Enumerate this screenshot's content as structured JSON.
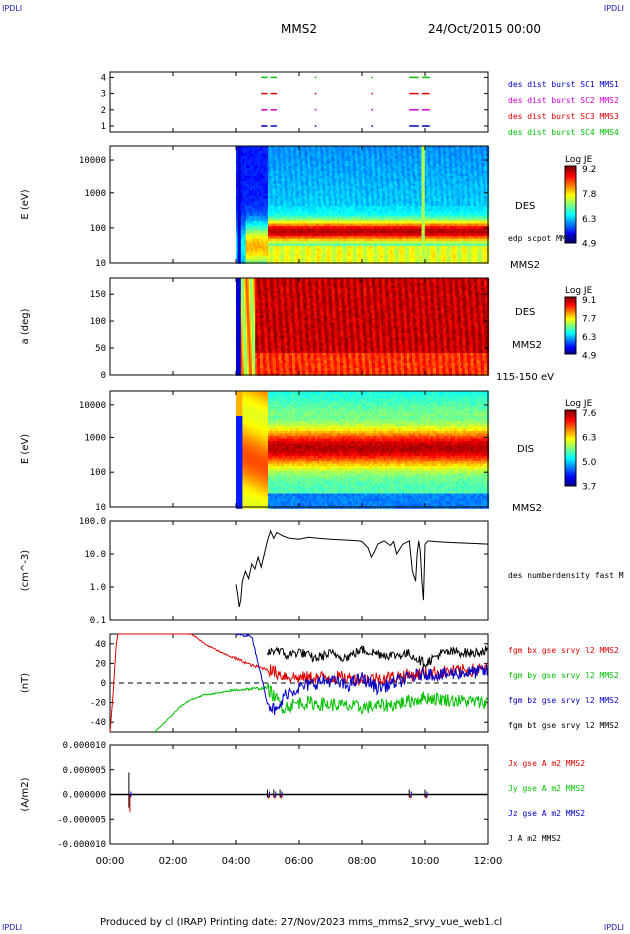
{
  "corner_tl": "IPDLI",
  "corner_tr": "IPDLI",
  "corner_bl": "IPDLI",
  "corner_br": "IPDLI",
  "header": {
    "spacecraft": "MMS2",
    "date": "24/Oct/2015 00:00"
  },
  "footer": {
    "text": "Produced by cl (IRAP)   Printing date: 27/Nov/2023   mms_mms2_srvy_vue_web1.cl"
  },
  "colors": {
    "c1": "#0000c8",
    "c2": "#d000d0",
    "c3": "#e00000",
    "c4": "#00c000",
    "bt": "#000000"
  },
  "chart_data": [
    {
      "type": "scatter",
      "id": "burst-availability",
      "yticks": [
        "1",
        "2",
        "3",
        "4"
      ],
      "legend": [
        "des dist burst SC1 MMS1",
        "des dist burst SC2 MMS2",
        "des dist burst SC3 MMS3",
        "des dist burst SC4 MMS4"
      ],
      "burst_intervals_hours": [
        [
          4.8,
          5.0
        ],
        [
          5.1,
          5.3
        ],
        [
          6.5,
          6.55
        ],
        [
          8.3,
          8.35
        ],
        [
          9.5,
          9.8
        ],
        [
          9.9,
          10.15
        ]
      ]
    },
    {
      "type": "heatmap",
      "id": "des-energy",
      "ylabel": "E (eV)",
      "yticks": [
        "10",
        "100",
        "1000",
        "10000"
      ],
      "ylim": [
        10,
        30000
      ],
      "label": "DES",
      "label2": "edp scpot MMS2",
      "label3": "MMS2",
      "colorbar": {
        "title": "Log JE",
        "ticks": [
          "9.2",
          "7.8",
          "6.3",
          "4.9"
        ]
      }
    },
    {
      "type": "heatmap",
      "id": "des-pitch-angle",
      "ylabel": "a (deg)",
      "yticks": [
        "0",
        "50",
        "100",
        "150"
      ],
      "ylim": [
        0,
        180
      ],
      "label": "DES",
      "label2": "MMS2",
      "label3": "115-150 eV",
      "colorbar": {
        "title": "Log JE",
        "ticks": [
          "9.1",
          "7.7",
          "6.3",
          "4.9"
        ]
      }
    },
    {
      "type": "heatmap",
      "id": "dis-energy",
      "ylabel": "E (eV)",
      "yticks": [
        "10",
        "100",
        "1000",
        "10000"
      ],
      "ylim": [
        10,
        30000
      ],
      "label": "DIS",
      "label2": "MMS2",
      "colorbar": {
        "title": "Log JE",
        "ticks": [
          "7.6",
          "6.3",
          "5.0",
          "3.7"
        ]
      }
    },
    {
      "type": "line",
      "id": "density",
      "ylabel": "(cm^-3)",
      "yticks": [
        "0.1",
        "1.0",
        "10.0",
        "100.0"
      ],
      "ylim": [
        0.1,
        100
      ],
      "legend": [
        "des numberdensity fast M"
      ],
      "x_hours": [
        4.0,
        4.05,
        4.1,
        4.15,
        4.2,
        4.3,
        4.4,
        4.5,
        4.6,
        4.7,
        4.8,
        4.9,
        5.0,
        5.1,
        5.2,
        5.3,
        5.5,
        5.7,
        6.0,
        6.3,
        6.6,
        7.0,
        7.3,
        7.6,
        7.9,
        8.0,
        8.2,
        8.3,
        8.4,
        8.5,
        8.7,
        8.9,
        9.0,
        9.1,
        9.3,
        9.5,
        9.6,
        9.7,
        9.75,
        9.8,
        9.85,
        9.9,
        9.95,
        10.0,
        10.1,
        10.3,
        10.6,
        11.0,
        11.5,
        12.0
      ],
      "values": [
        1.2,
        0.6,
        0.25,
        0.4,
        1.5,
        3.0,
        1.8,
        5.0,
        3.5,
        8.0,
        4.0,
        10.0,
        25.0,
        50.0,
        30.0,
        45.0,
        35.0,
        30.0,
        28.0,
        32.0,
        30.0,
        28.0,
        27.0,
        26.0,
        25.0,
        24.0,
        15.0,
        8.0,
        12.0,
        20.0,
        25.0,
        18.0,
        24.0,
        10.0,
        20.0,
        25.0,
        3.0,
        1.5,
        10.0,
        25.0,
        12.0,
        1.5,
        0.4,
        20.0,
        25.0,
        24.0,
        23.0,
        22.0,
        21.0,
        20.0
      ]
    },
    {
      "type": "line",
      "id": "magnetic-field",
      "ylabel": "(nT)",
      "yticks": [
        "-40",
        "-20",
        "0",
        "20",
        "40"
      ],
      "ylim": [
        -50,
        50
      ],
      "legend": [
        "fgm bx gse srvy l2 MMS2",
        "fgm by gse srvy l2 MMS2",
        "fgm bz gse srvy l2 MMS2",
        "fgm bt gse srvy l2 MMS2"
      ],
      "bx": {
        "x_hours": [
          0.0,
          0.1,
          0.2,
          0.3,
          2.6,
          2.8,
          3.0,
          3.3,
          3.6,
          4.0,
          4.5,
          5.0,
          5.5,
          6.0,
          7.0,
          8.0,
          9.0,
          10.0,
          11.0,
          12.0
        ],
        "values": [
          -50,
          -10,
          40,
          60,
          50,
          45,
          40,
          35,
          30,
          25,
          18,
          14,
          8,
          5,
          6,
          4,
          6,
          10,
          12,
          14
        ]
      },
      "by": {
        "x_hours": [
          1.4,
          1.6,
          1.8,
          2.0,
          2.2,
          2.5,
          3.0,
          3.5,
          4.0,
          4.5,
          5.0,
          5.5,
          6.0,
          7.0,
          8.0,
          9.0,
          10.0,
          11.0,
          12.0
        ],
        "values": [
          -50,
          -45,
          -38,
          -32,
          -25,
          -18,
          -12,
          -10,
          -7,
          -6,
          -5,
          -25,
          -20,
          -22,
          -25,
          -22,
          -15,
          -18,
          -20
        ]
      },
      "bz": {
        "x_hours": [
          4.0,
          4.5,
          5.0,
          5.3,
          5.6,
          6.0,
          6.5,
          7.0,
          7.5,
          8.0,
          8.5,
          9.0,
          9.5,
          10.0,
          10.5,
          11.0,
          12.0
        ],
        "values": [
          50,
          48,
          -20,
          -30,
          -10,
          -5,
          0,
          3,
          -3,
          5,
          -5,
          0,
          5,
          10,
          8,
          10,
          12
        ]
      },
      "bt": {
        "x_hours": [
          5.0,
          5.3,
          5.6,
          6.0,
          6.5,
          7.0,
          7.5,
          8.0,
          8.5,
          9.0,
          9.5,
          10.0,
          10.5,
          11.0,
          11.5,
          12.0
        ],
        "values": [
          30,
          35,
          28,
          32,
          25,
          30,
          26,
          34,
          30,
          28,
          30,
          20,
          30,
          32,
          30,
          34
        ]
      }
    },
    {
      "type": "line",
      "id": "current-density",
      "ylabel": "(A/m2)",
      "yticks": [
        "-0.000010",
        "-0.000005",
        "0.000000",
        "0.000005",
        "0.000010"
      ],
      "ylim": [
        -1e-05,
        1e-05
      ],
      "legend": [
        "Jx gse A m2 MMS2",
        "Jy gse A m2 MMS2",
        "Jz gse A m2 MMS2",
        "J A m2 MMS2"
      ],
      "spikes_hours": [
        0.6,
        5.0,
        5.2,
        5.4,
        9.5,
        10.0
      ]
    }
  ],
  "time_axis": {
    "ticks": [
      "00:00",
      "02:00",
      "04:00",
      "06:00",
      "08:00",
      "10:00",
      "12:00"
    ],
    "xlim_hours": [
      0,
      12
    ]
  }
}
